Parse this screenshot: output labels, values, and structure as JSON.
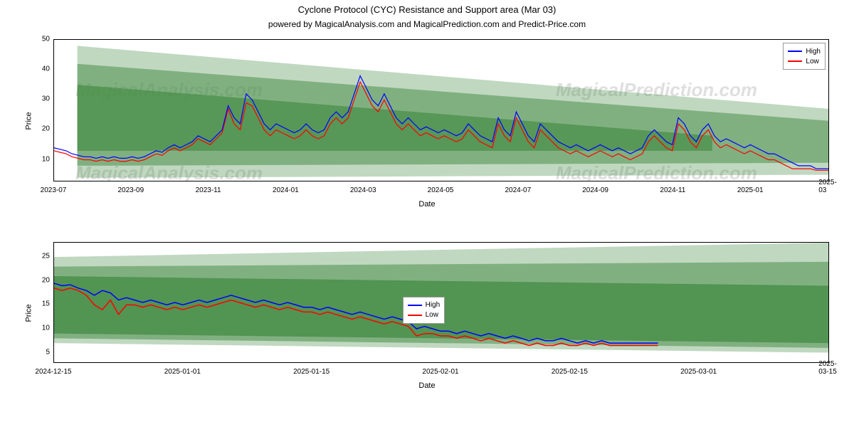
{
  "title": "Cyclone Protocol (CYC) Resistance and Support area (Mar 03)",
  "subtitle": "powered by MagicalAnalysis.com and MagicalPrediction.com and Predict-Price.com",
  "watermarks": {
    "top_left": "MagicalAnalysis.com",
    "top_right": "MagicalPrediction.com",
    "bottom_left": "MagicalAnalysis.com",
    "bottom_right": "MagicalPrediction.com"
  },
  "colors": {
    "high_line": "#0000ff",
    "low_line": "#ff0000",
    "band_dark": "#4a8f4a",
    "band_med": "#7fbf7f",
    "band_light": "#b8dcb8",
    "axis": "#000000",
    "background": "#ffffff",
    "watermark": "rgba(128,128,128,0.25)"
  },
  "legend": {
    "high": "High",
    "low": "Low"
  },
  "chart1": {
    "type": "line-with-bands",
    "ylabel": "Price",
    "xlabel": "Date",
    "ylim": [
      3,
      50
    ],
    "yticks": [
      10,
      20,
      30,
      40,
      50
    ],
    "xticks": [
      "2023-07",
      "2023-09",
      "2023-11",
      "2024-01",
      "2024-03",
      "2024-05",
      "2024-07",
      "2024-09",
      "2024-11",
      "2025-01",
      "2025-03"
    ],
    "legend_pos": "top-right",
    "line_width": 1.2,
    "bands": [
      {
        "opacity": 0.35,
        "top_start": 48,
        "top_end": 27,
        "bot_start": 4,
        "bot_end": 5,
        "left_pct": 3,
        "right_pct": 100
      },
      {
        "opacity": 0.55,
        "top_start": 42,
        "top_end": 23,
        "bot_start": 8,
        "bot_end": 9,
        "left_pct": 3,
        "right_pct": 100
      },
      {
        "opacity": 0.75,
        "top_start": 35,
        "top_end": 18,
        "bot_start": 13,
        "bot_end": 13,
        "left_pct": 3,
        "right_pct": 85
      }
    ],
    "high": [
      14,
      13.5,
      13,
      12,
      11.5,
      11,
      11,
      10.5,
      11,
      10.5,
      11,
      10.5,
      10.5,
      11,
      10.5,
      11,
      12,
      13,
      12.5,
      14,
      15,
      14,
      15,
      16,
      18,
      17,
      16,
      18,
      20,
      28,
      24,
      22,
      32,
      30,
      26,
      22,
      20,
      22,
      21,
      20,
      19,
      20,
      22,
      20,
      19,
      20,
      24,
      26,
      24,
      26,
      32,
      38,
      34,
      30,
      28,
      32,
      28,
      24,
      22,
      24,
      22,
      20,
      21,
      20,
      19,
      20,
      19,
      18,
      19,
      22,
      20,
      18,
      17,
      16,
      24,
      20,
      18,
      26,
      22,
      18,
      16,
      22,
      20,
      18,
      16,
      15,
      14,
      15,
      14,
      13,
      14,
      15,
      14,
      13,
      14,
      13,
      12,
      13,
      14,
      18,
      20,
      18,
      16,
      15,
      24,
      22,
      18,
      16,
      20,
      22,
      18,
      16,
      17,
      16,
      15,
      14,
      15,
      14,
      13,
      12,
      12,
      11,
      10,
      9,
      8,
      8,
      8,
      7,
      7,
      7
    ],
    "low": [
      13,
      12.5,
      12,
      11,
      10.5,
      10,
      10,
      9.5,
      10,
      9.5,
      10,
      9.5,
      9.5,
      10,
      9.5,
      10,
      11,
      12,
      11.5,
      13,
      14,
      13,
      14,
      15,
      17,
      16,
      15,
      17,
      19,
      27,
      22,
      20,
      29,
      28,
      24,
      20,
      18,
      20,
      19,
      18,
      17,
      18,
      20,
      18,
      17,
      18,
      22,
      24,
      22,
      24,
      30,
      36,
      32,
      28,
      26,
      30,
      26,
      22,
      20,
      22,
      20,
      18,
      19,
      18,
      17,
      18,
      17,
      16,
      17,
      20,
      18,
      16,
      15,
      14,
      22,
      18,
      16,
      24,
      20,
      16,
      14,
      20,
      18,
      16,
      14,
      13,
      12,
      13,
      12,
      11,
      12,
      13,
      12,
      11,
      12,
      11,
      10,
      11,
      12,
      16,
      18,
      16,
      14,
      13,
      22,
      20,
      16,
      14,
      18,
      20,
      16,
      14,
      15,
      14,
      13,
      12,
      13,
      12,
      11,
      10,
      10,
      9,
      8,
      7,
      7,
      7,
      7,
      6.5,
      6.5,
      6.5
    ]
  },
  "chart2": {
    "type": "line-with-bands",
    "ylabel": "Price",
    "xlabel": "Date",
    "ylim": [
      3,
      28
    ],
    "yticks": [
      5,
      10,
      15,
      20,
      25
    ],
    "xticks": [
      "2024-12-15",
      "2025-01-01",
      "2025-01-15",
      "2025-02-01",
      "2025-02-15",
      "2025-03-01",
      "2025-03-15"
    ],
    "legend_pos": "center",
    "line_width": 1.5,
    "bands": [
      {
        "opacity": 0.35,
        "top_start": 25,
        "top_end": 28,
        "bot_start": 7,
        "bot_end": 5,
        "left_pct": 0,
        "right_pct": 100
      },
      {
        "opacity": 0.55,
        "top_start": 23,
        "top_end": 24,
        "bot_start": 8,
        "bot_end": 6,
        "left_pct": 0,
        "right_pct": 100
      },
      {
        "opacity": 0.85,
        "top_start": 21,
        "top_end": 19,
        "bot_start": 9,
        "bot_end": 7,
        "left_pct": 0,
        "right_pct": 100
      }
    ],
    "high": [
      19.5,
      19,
      19.2,
      18.5,
      18,
      17,
      18,
      17.5,
      16,
      16.5,
      16,
      15.5,
      16,
      15.5,
      15,
      15.5,
      15,
      15.5,
      16,
      15.5,
      16,
      16.5,
      17,
      16.5,
      16,
      15.5,
      16,
      15.5,
      15,
      15.5,
      15,
      14.5,
      14.5,
      14,
      14.5,
      14,
      13.5,
      13,
      13.5,
      13,
      12.5,
      12,
      12.5,
      12,
      11.5,
      10,
      10.5,
      10,
      9.5,
      9.5,
      9,
      9.5,
      9,
      8.5,
      9,
      8.5,
      8,
      8.5,
      8,
      7.5,
      8,
      7.5,
      7.5,
      8,
      7.5,
      7,
      7.5,
      7,
      7.5,
      7,
      7,
      7,
      7,
      7,
      7,
      7
    ],
    "low": [
      18.5,
      18,
      18.5,
      18,
      17,
      15,
      14,
      16,
      13,
      15,
      15,
      14.5,
      15,
      14.5,
      14,
      14.5,
      14,
      14.5,
      15,
      14.5,
      15,
      15.5,
      16,
      15.5,
      15,
      14.5,
      15,
      14.5,
      14,
      14.5,
      14,
      13.5,
      13.5,
      13,
      13.5,
      13,
      12.5,
      12,
      12.5,
      12,
      11.5,
      11,
      11.5,
      11,
      10.5,
      8.5,
      9,
      9,
      8.5,
      8.5,
      8,
      8.5,
      8,
      7.5,
      8,
      7.5,
      7,
      7.5,
      7,
      6.5,
      7,
      6.5,
      6.5,
      7,
      6.5,
      6.5,
      7,
      6.5,
      7,
      6.5,
      6.5,
      6.5,
      6.5,
      6.5,
      6.5,
      6.5
    ]
  }
}
